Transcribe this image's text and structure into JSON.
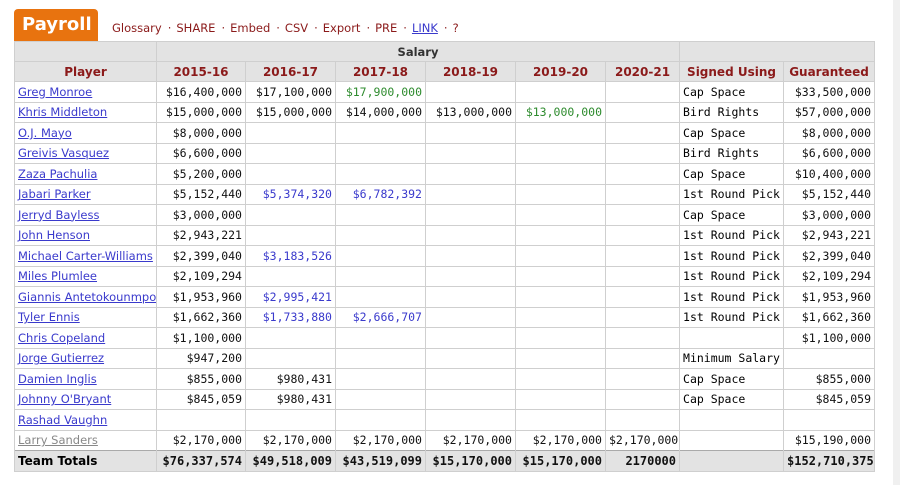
{
  "title": "Payroll",
  "links": [
    {
      "label": "Glossary",
      "underline": false
    },
    {
      "label": "SHARE",
      "underline": false
    },
    {
      "label": "Embed",
      "underline": false
    },
    {
      "label": "CSV",
      "underline": false
    },
    {
      "label": "Export",
      "underline": false
    },
    {
      "label": "PRE",
      "underline": false
    },
    {
      "label": "LINK",
      "underline": true
    },
    {
      "label": "?",
      "underline": false
    }
  ],
  "group_header": "Salary",
  "columns": [
    "Player",
    "2015-16",
    "2016-17",
    "2017-18",
    "2018-19",
    "2019-20",
    "2020-21",
    "Signed Using",
    "Guaranteed"
  ],
  "rows": [
    {
      "player": "Greg Monroe",
      "salaries": [
        "$16,400,000",
        "$17,100,000",
        "$17,900,000",
        "",
        "",
        ""
      ],
      "colors": [
        "",
        "",
        "green",
        "",
        "",
        ""
      ],
      "signed": "Cap Space",
      "guaranteed": "$33,500,000"
    },
    {
      "player": "Khris Middleton",
      "salaries": [
        "$15,000,000",
        "$15,000,000",
        "$14,000,000",
        "$13,000,000",
        "$13,000,000",
        ""
      ],
      "colors": [
        "",
        "",
        "",
        "",
        "green",
        ""
      ],
      "signed": "Bird Rights",
      "guaranteed": "$57,000,000"
    },
    {
      "player": "O.J. Mayo",
      "salaries": [
        "$8,000,000",
        "",
        "",
        "",
        "",
        ""
      ],
      "colors": [
        "",
        "",
        "",
        "",
        "",
        ""
      ],
      "signed": "Cap Space",
      "guaranteed": "$8,000,000"
    },
    {
      "player": "Greivis Vasquez",
      "salaries": [
        "$6,600,000",
        "",
        "",
        "",
        "",
        ""
      ],
      "colors": [
        "",
        "",
        "",
        "",
        "",
        ""
      ],
      "signed": "Bird Rights",
      "guaranteed": "$6,600,000"
    },
    {
      "player": "Zaza Pachulia",
      "salaries": [
        "$5,200,000",
        "",
        "",
        "",
        "",
        ""
      ],
      "colors": [
        "",
        "",
        "",
        "",
        "",
        ""
      ],
      "signed": "Cap Space",
      "guaranteed": "$10,400,000"
    },
    {
      "player": "Jabari Parker",
      "salaries": [
        "$5,152,440",
        "$5,374,320",
        "$6,782,392",
        "",
        "",
        ""
      ],
      "colors": [
        "",
        "blue",
        "blue",
        "",
        "",
        ""
      ],
      "signed": "1st Round Pick",
      "guaranteed": "$5,152,440"
    },
    {
      "player": "Jerryd Bayless",
      "salaries": [
        "$3,000,000",
        "",
        "",
        "",
        "",
        ""
      ],
      "colors": [
        "",
        "",
        "",
        "",
        "",
        ""
      ],
      "signed": "Cap Space",
      "guaranteed": "$3,000,000"
    },
    {
      "player": "John Henson",
      "salaries": [
        "$2,943,221",
        "",
        "",
        "",
        "",
        ""
      ],
      "colors": [
        "",
        "",
        "",
        "",
        "",
        ""
      ],
      "signed": "1st Round Pick",
      "guaranteed": "$2,943,221"
    },
    {
      "player": "Michael Carter-Williams",
      "salaries": [
        "$2,399,040",
        "$3,183,526",
        "",
        "",
        "",
        ""
      ],
      "colors": [
        "",
        "blue",
        "",
        "",
        "",
        ""
      ],
      "signed": "1st Round Pick",
      "guaranteed": "$2,399,040"
    },
    {
      "player": "Miles Plumlee",
      "salaries": [
        "$2,109,294",
        "",
        "",
        "",
        "",
        ""
      ],
      "colors": [
        "",
        "",
        "",
        "",
        "",
        ""
      ],
      "signed": "1st Round Pick",
      "guaranteed": "$2,109,294"
    },
    {
      "player": "Giannis Antetokounmpo",
      "salaries": [
        "$1,953,960",
        "$2,995,421",
        "",
        "",
        "",
        ""
      ],
      "colors": [
        "",
        "blue",
        "",
        "",
        "",
        ""
      ],
      "signed": "1st Round Pick",
      "guaranteed": "$1,953,960"
    },
    {
      "player": "Tyler Ennis",
      "salaries": [
        "$1,662,360",
        "$1,733,880",
        "$2,666,707",
        "",
        "",
        ""
      ],
      "colors": [
        "",
        "blue",
        "blue",
        "",
        "",
        ""
      ],
      "signed": "1st Round Pick",
      "guaranteed": "$1,662,360"
    },
    {
      "player": "Chris Copeland",
      "salaries": [
        "$1,100,000",
        "",
        "",
        "",
        "",
        ""
      ],
      "colors": [
        "",
        "",
        "",
        "",
        "",
        ""
      ],
      "signed": "",
      "guaranteed": "$1,100,000"
    },
    {
      "player": "Jorge Gutierrez",
      "salaries": [
        "$947,200",
        "",
        "",
        "",
        "",
        ""
      ],
      "colors": [
        "",
        "",
        "",
        "",
        "",
        ""
      ],
      "signed": "Minimum Salary",
      "guaranteed": ""
    },
    {
      "player": "Damien Inglis",
      "salaries": [
        "$855,000",
        "$980,431",
        "",
        "",
        "",
        ""
      ],
      "colors": [
        "",
        "",
        "",
        "",
        "",
        ""
      ],
      "signed": "Cap Space",
      "guaranteed": "$855,000"
    },
    {
      "player": "Johnny O'Bryant",
      "salaries": [
        "$845,059",
        "$980,431",
        "",
        "",
        "",
        ""
      ],
      "colors": [
        "",
        "",
        "",
        "",
        "",
        ""
      ],
      "signed": "Cap Space",
      "guaranteed": "$845,059"
    },
    {
      "player": "Rashad Vaughn",
      "salaries": [
        "",
        "",
        "",
        "",
        "",
        ""
      ],
      "colors": [
        "",
        "",
        "",
        "",
        "",
        ""
      ],
      "signed": "",
      "guaranteed": ""
    },
    {
      "player": "Larry Sanders",
      "gray": true,
      "salaries": [
        "$2,170,000",
        "$2,170,000",
        "$2,170,000",
        "$2,170,000",
        "$2,170,000",
        "$2,170,000"
      ],
      "colors": [
        "",
        "",
        "",
        "",
        "",
        ""
      ],
      "signed": "",
      "guaranteed": "$15,190,000"
    }
  ],
  "totals": {
    "label": "Team Totals",
    "salaries": [
      "$76,337,574",
      "$49,518,009",
      "$43,519,099",
      "$15,170,000",
      "$15,170,000",
      "2170000"
    ],
    "signed": "",
    "guaranteed": "$152,710,375"
  },
  "colors": {
    "accent": "#e8730f",
    "header_text": "#8b1a1a",
    "link": "#3a3acc",
    "green": "#2e8b2e"
  }
}
